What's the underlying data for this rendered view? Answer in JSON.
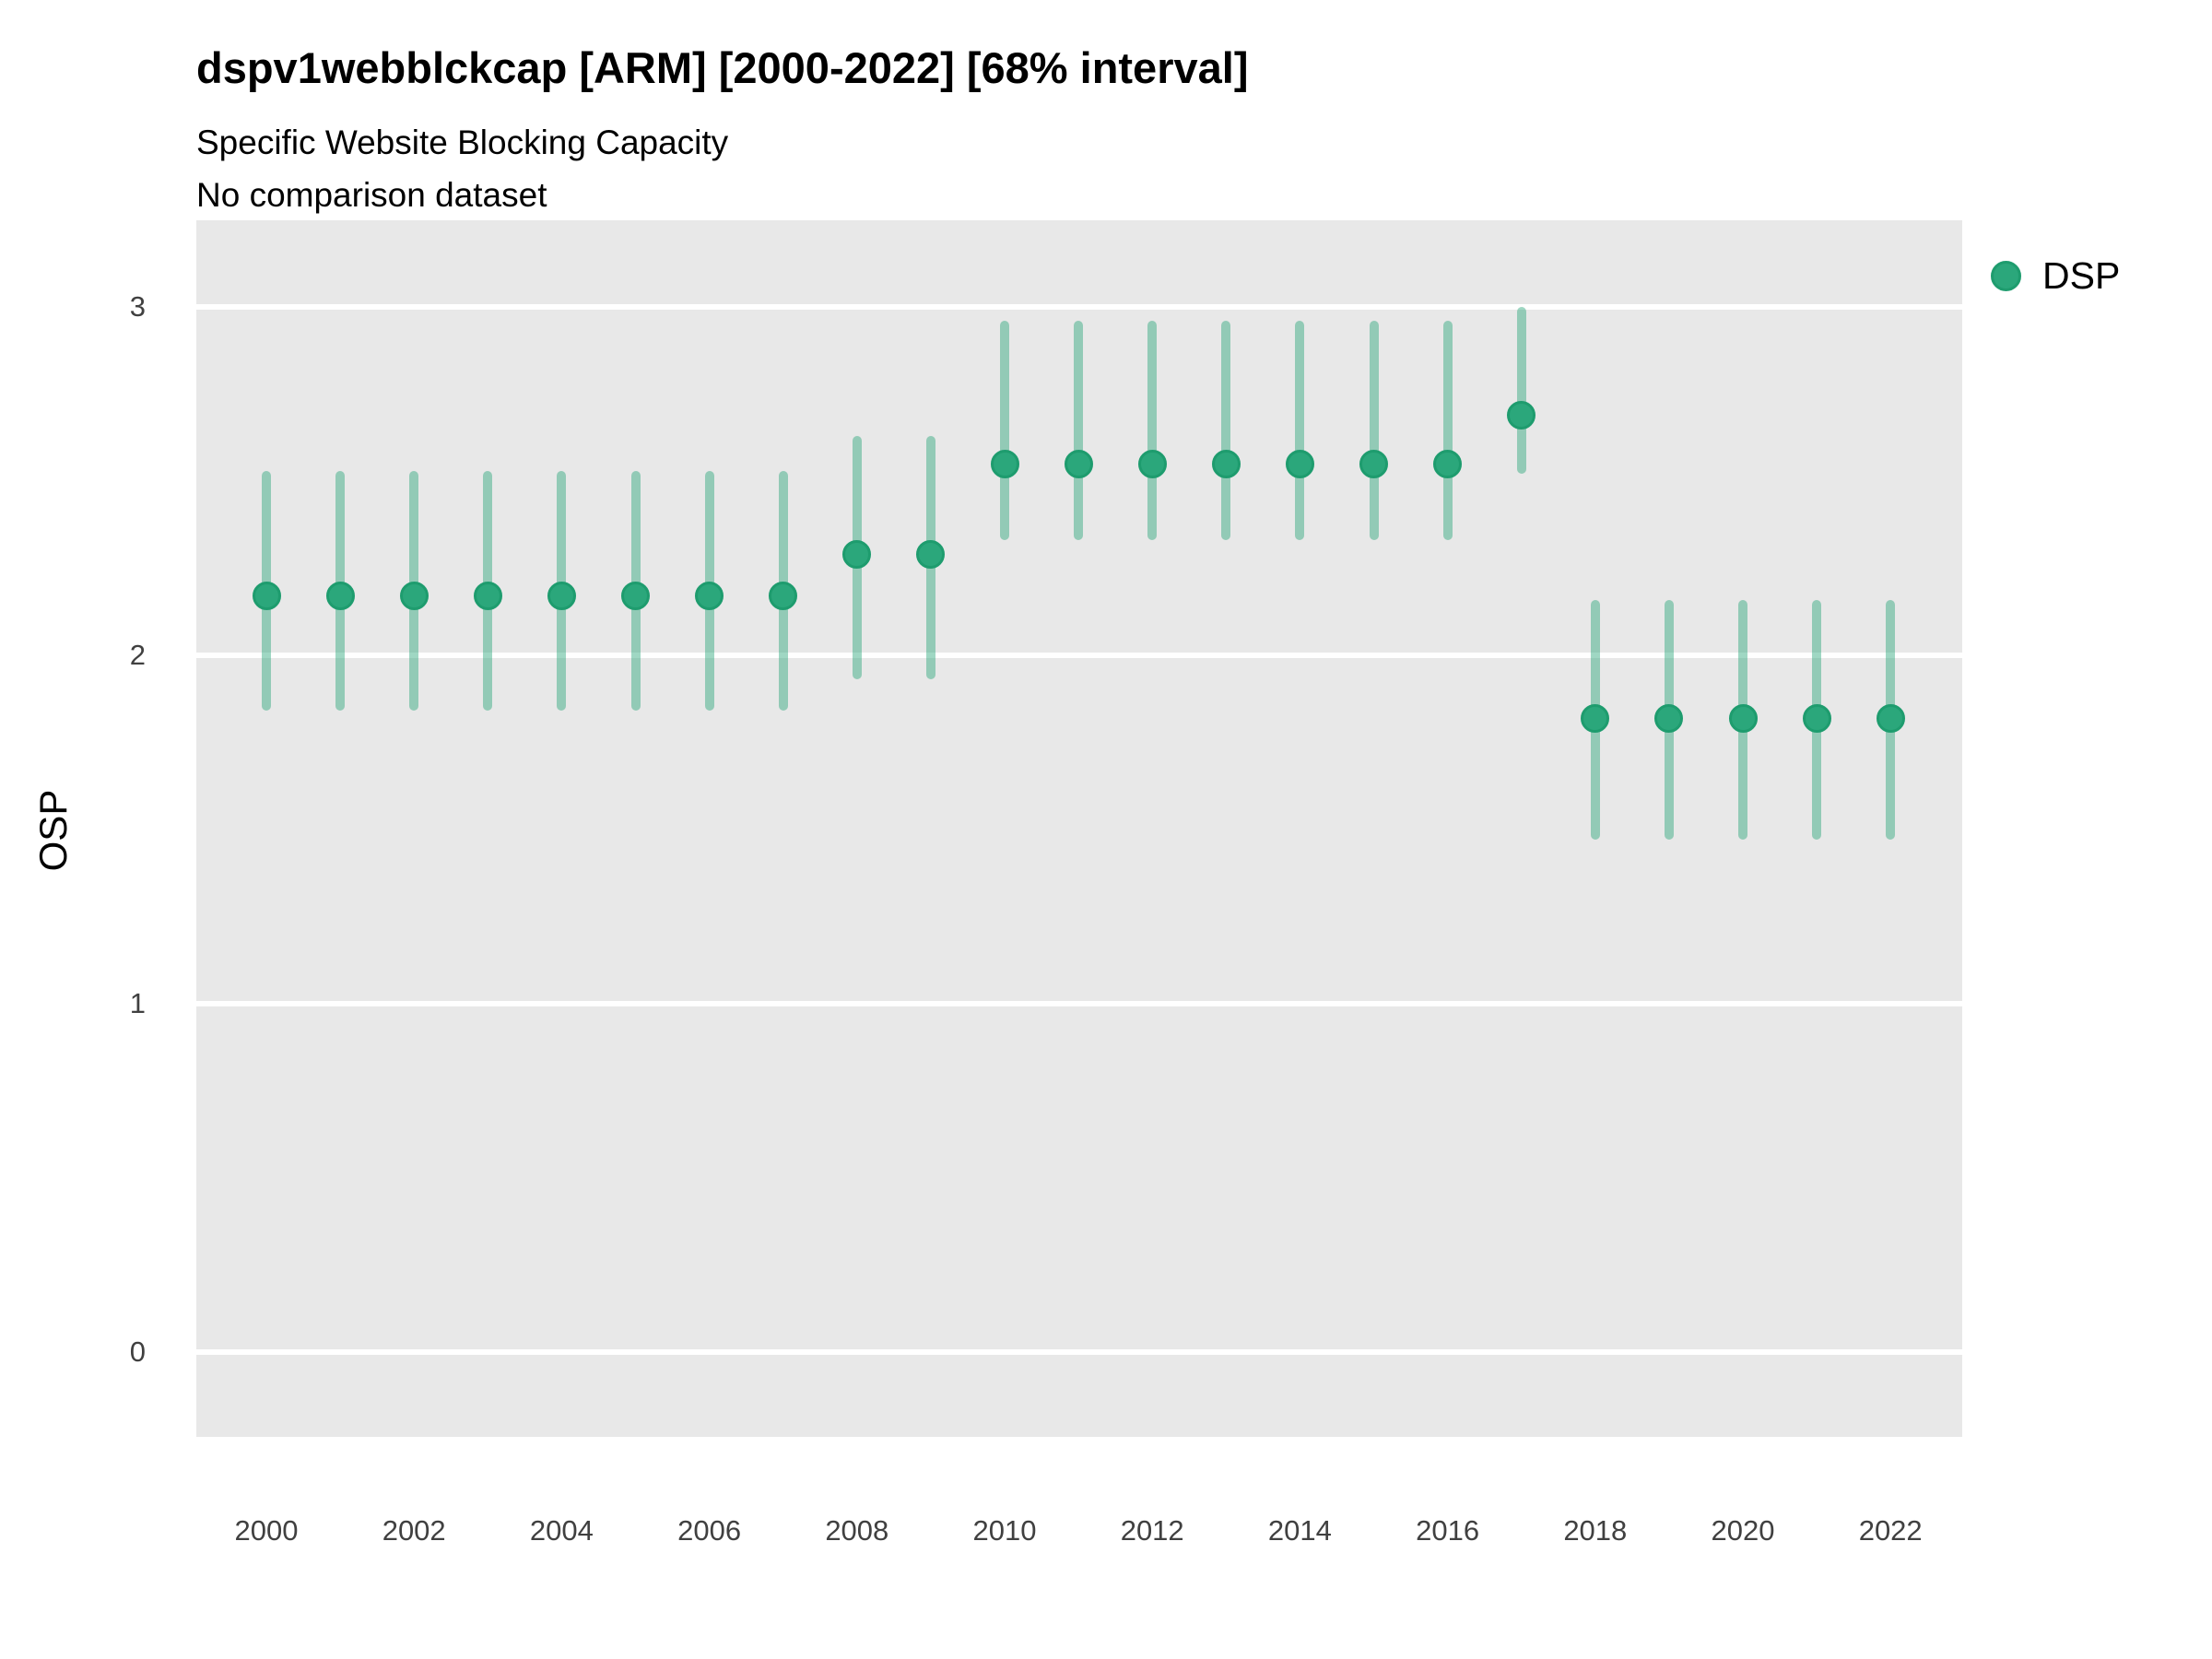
{
  "header": {
    "title": "dspv1webblckcap [ARM] [2000-2022] [68% interval]",
    "subtitle": "Specific Website Blocking Capacity",
    "note": "No comparison dataset"
  },
  "axes": {
    "y_title": "OSP",
    "x_title": ""
  },
  "legend": {
    "position": "right",
    "entries": [
      {
        "label": "DSP",
        "color": "#2BA77B",
        "ring_color": "#1E9C6E"
      }
    ]
  },
  "chart_data": {
    "type": "pointrange",
    "title": "dspv1webblckcap [ARM] [2000-2022] [68% interval]",
    "subtitle": "Specific Website Blocking Capacity",
    "note": "No comparison dataset",
    "interval_level": "68%",
    "xlabel": "",
    "ylabel": "OSP",
    "grid": "horizontal-major-only",
    "legend_position": "right",
    "ylim": [
      -0.25,
      3.25
    ],
    "yticks": [
      0,
      1,
      2,
      3
    ],
    "xticks": [
      2000,
      2002,
      2004,
      2006,
      2008,
      2010,
      2012,
      2014,
      2016,
      2018,
      2020,
      2022
    ],
    "series": [
      {
        "name": "DSP",
        "x": [
          2000,
          2001,
          2002,
          2003,
          2004,
          2005,
          2006,
          2007,
          2008,
          2009,
          2010,
          2011,
          2012,
          2013,
          2014,
          2015,
          2016,
          2017,
          2018,
          2019,
          2020,
          2021,
          2022
        ],
        "points": [
          2.17,
          2.17,
          2.17,
          2.17,
          2.17,
          2.17,
          2.17,
          2.17,
          2.29,
          2.29,
          2.55,
          2.55,
          2.55,
          2.55,
          2.55,
          2.55,
          2.55,
          2.69,
          1.82,
          1.82,
          1.82,
          1.82,
          1.82
        ],
        "lower": [
          1.84,
          1.84,
          1.84,
          1.84,
          1.84,
          1.84,
          1.84,
          1.84,
          1.93,
          1.93,
          2.33,
          2.33,
          2.33,
          2.33,
          2.33,
          2.33,
          2.33,
          2.52,
          1.47,
          1.47,
          1.47,
          1.47,
          1.47
        ],
        "upper": [
          2.53,
          2.53,
          2.53,
          2.53,
          2.53,
          2.53,
          2.53,
          2.53,
          2.63,
          2.63,
          2.96,
          2.96,
          2.96,
          2.96,
          2.96,
          2.96,
          2.96,
          3.0,
          2.16,
          2.16,
          2.16,
          2.16,
          2.16
        ]
      }
    ],
    "colors": {
      "point": "#2BA77B",
      "point_ring": "#1E9C6E",
      "interval": "rgba(43,167,123,0.45)",
      "panel_bg": "#E8E8E8",
      "gridline": "#FFFFFF",
      "tick_text": "#404040"
    }
  }
}
